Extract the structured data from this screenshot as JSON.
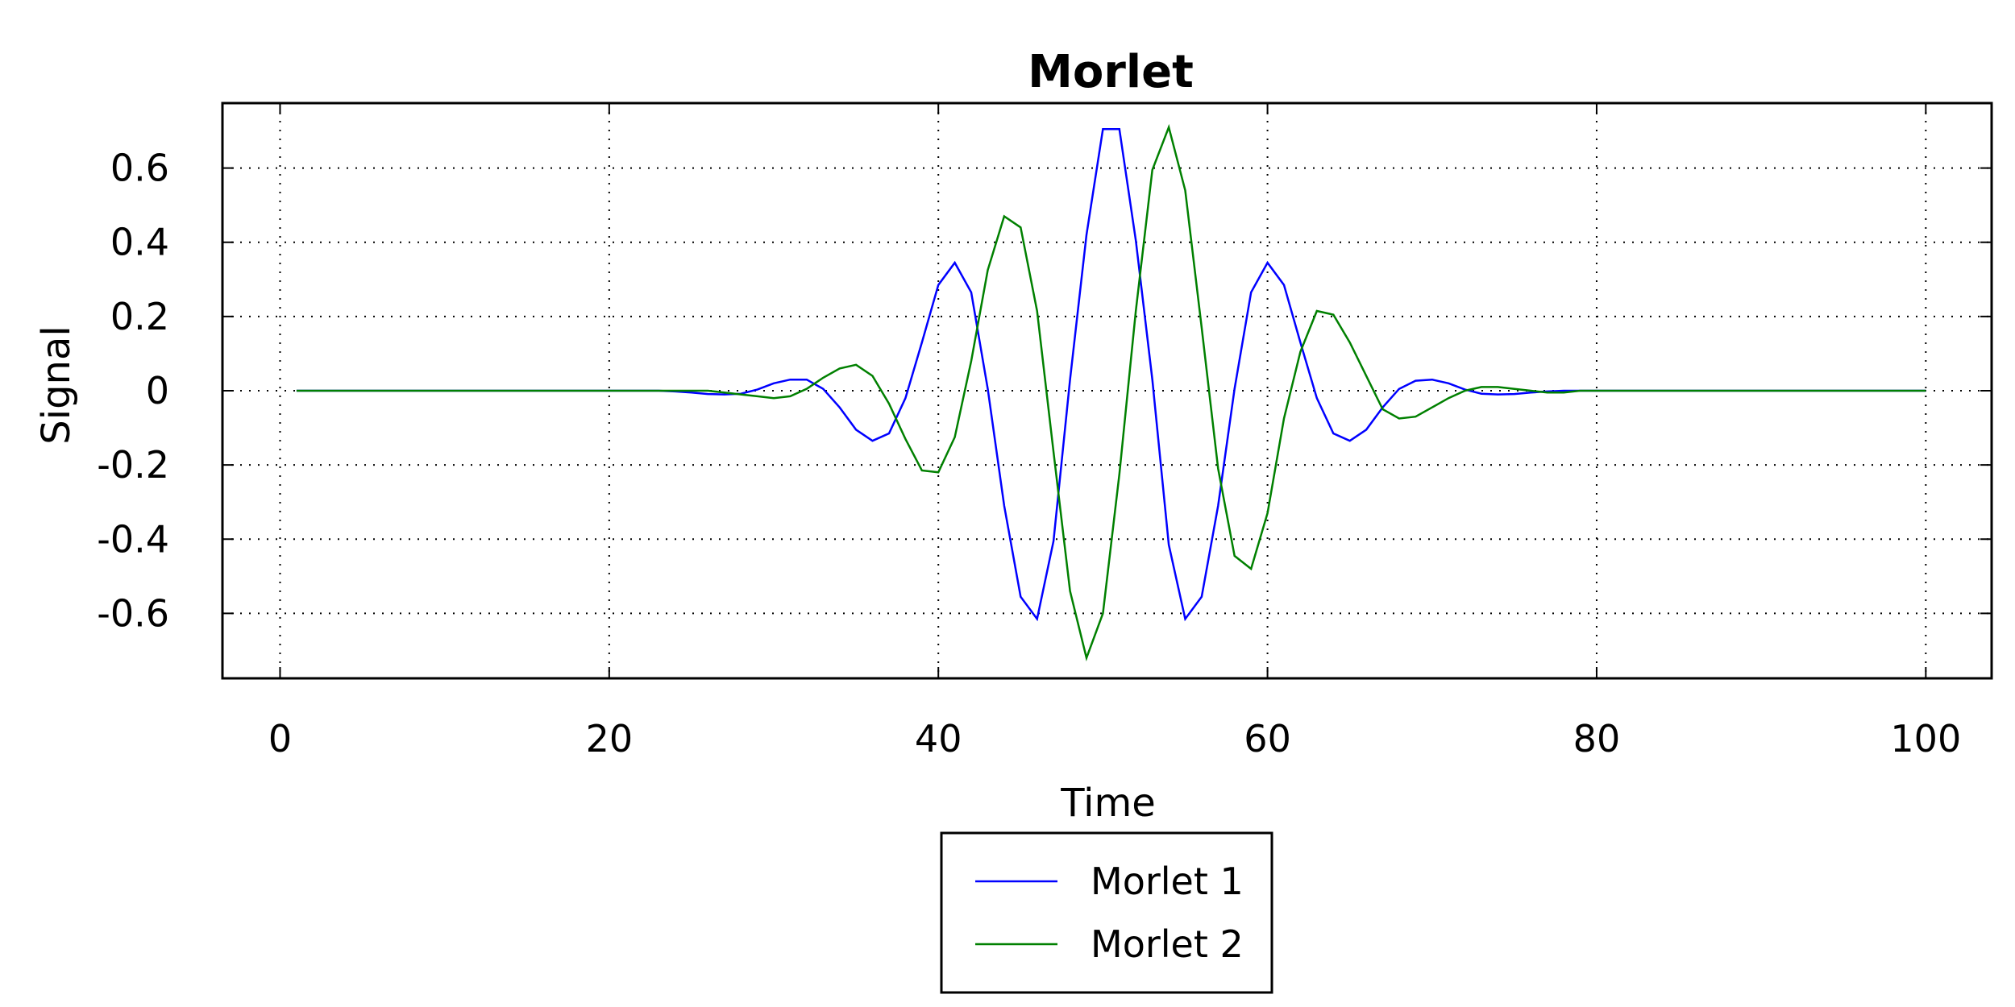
{
  "chart_data": {
    "type": "line",
    "title": "Morlet",
    "xlabel": "Time",
    "ylabel": "Signal",
    "xlim": [
      -3.5,
      104
    ],
    "ylim": [
      -0.775,
      0.775
    ],
    "xticks": [
      0,
      20,
      40,
      60,
      80,
      100
    ],
    "xtick_labels": [
      "0",
      "20",
      "40",
      "60",
      "80",
      "100"
    ],
    "yticks": [
      0.6,
      0.4,
      0.2,
      0,
      -0.2,
      -0.4,
      -0.6
    ],
    "ytick_labels": [
      "0.6",
      "0.4",
      "0.2",
      "0",
      "-0.2",
      "-0.4",
      "-0.6"
    ],
    "grid": true,
    "legend_position": "bottom-center, below axes",
    "x": [
      1,
      2,
      3,
      4,
      5,
      6,
      7,
      8,
      9,
      10,
      11,
      12,
      13,
      14,
      15,
      16,
      17,
      18,
      19,
      20,
      21,
      22,
      23,
      24,
      25,
      26,
      27,
      28,
      29,
      30,
      31,
      32,
      33,
      34,
      35,
      36,
      37,
      38,
      39,
      40,
      41,
      42,
      43,
      44,
      45,
      46,
      47,
      48,
      49,
      50,
      51,
      52,
      53,
      54,
      55,
      56,
      57,
      58,
      59,
      60,
      61,
      62,
      63,
      64,
      65,
      66,
      67,
      68,
      69,
      70,
      71,
      72,
      73,
      74,
      75,
      76,
      77,
      78,
      79,
      80,
      81,
      82,
      83,
      84,
      85,
      86,
      87,
      88,
      89,
      90,
      91,
      92,
      93,
      94,
      95,
      96,
      97,
      98,
      99,
      100
    ],
    "series": [
      {
        "name": "Morlet 1",
        "color": "#0000ff",
        "values": [
          0,
          0,
          0,
          0,
          0,
          0,
          0,
          0,
          0,
          0,
          0,
          0,
          0,
          0,
          0,
          0,
          0,
          0,
          0,
          0,
          0,
          0,
          0,
          -0.002,
          -0.005,
          -0.009,
          -0.01,
          -0.008,
          0.003,
          0.02,
          0.03,
          0.03,
          0.005,
          -0.045,
          -0.105,
          -0.135,
          -0.115,
          -0.02,
          0.13,
          0.285,
          0.345,
          0.265,
          0.005,
          -0.31,
          -0.555,
          -0.615,
          -0.405,
          0.03,
          0.42,
          0.705,
          0.705,
          0.405,
          0.03,
          -0.415,
          -0.615,
          -0.555,
          -0.31,
          0.005,
          0.265,
          0.345,
          0.285,
          0.13,
          -0.02,
          -0.115,
          -0.135,
          -0.105,
          -0.045,
          0.005,
          0.027,
          0.03,
          0.02,
          0.003,
          -0.008,
          -0.01,
          -0.009,
          -0.005,
          -0.002,
          0,
          0,
          0,
          0,
          0,
          0,
          0,
          0,
          0,
          0,
          0,
          0,
          0,
          0,
          0,
          0,
          0,
          0,
          0,
          0,
          0,
          0,
          0
        ]
      },
      {
        "name": "Morlet 2",
        "color": "#008000",
        "values": [
          0,
          0,
          0,
          0,
          0,
          0,
          0,
          0,
          0,
          0,
          0,
          0,
          0,
          0,
          0,
          0,
          0,
          0,
          0,
          0,
          0,
          0,
          0,
          0,
          0,
          0,
          -0.005,
          -0.01,
          -0.015,
          -0.02,
          -0.015,
          0.005,
          0.035,
          0.06,
          0.07,
          0.04,
          -0.035,
          -0.13,
          -0.215,
          -0.22,
          -0.125,
          0.08,
          0.325,
          0.47,
          0.44,
          0.215,
          -0.165,
          -0.54,
          -0.72,
          -0.6,
          -0.225,
          0.215,
          0.595,
          0.71,
          0.54,
          0.17,
          -0.21,
          -0.445,
          -0.48,
          -0.33,
          -0.075,
          0.105,
          0.215,
          0.205,
          0.13,
          0.04,
          -0.05,
          -0.075,
          -0.07,
          -0.045,
          -0.02,
          0,
          0.01,
          0.01,
          0.005,
          0,
          -0.005,
          -0.005,
          0,
          0,
          0,
          0,
          0,
          0,
          0,
          0,
          0,
          0,
          0,
          0,
          0,
          0,
          0,
          0,
          0,
          0,
          0,
          0,
          0,
          0
        ]
      }
    ]
  }
}
